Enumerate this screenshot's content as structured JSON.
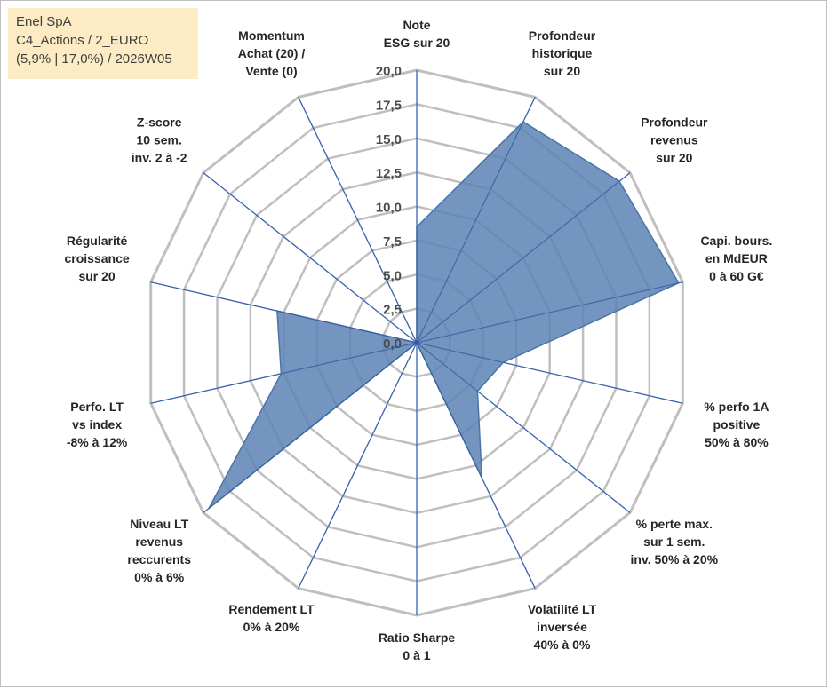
{
  "info": {
    "company": "Enel SpA",
    "portfolio": "C4_Actions / 2_EURO",
    "stats": "(5,9% | 17,0%) / 2026W05"
  },
  "colors": {
    "grid": "#bfbfbf",
    "spoke": "#4472c4",
    "fill": "#5b83b5",
    "info_bg": "#fdebc4"
  },
  "chart_data": {
    "type": "radar",
    "title": "",
    "rmin": 0,
    "rmax": 20,
    "ticks": [
      "0,0",
      "2,5",
      "5,0",
      "7,5",
      "10,0",
      "12,5",
      "15,0",
      "17,5",
      "20,0"
    ],
    "tick_values": [
      0,
      2.5,
      5,
      7.5,
      10,
      12.5,
      15,
      17.5,
      20
    ],
    "axes": [
      {
        "label": [
          "Note",
          "ESG sur 20"
        ],
        "value": 8.5
      },
      {
        "label": [
          "Profondeur",
          "historique",
          "sur 20"
        ],
        "value": 18
      },
      {
        "label": [
          "Profondeur",
          "revenus",
          "sur 20"
        ],
        "value": 19
      },
      {
        "label": [
          "Capi. bours.",
          "en MdEUR",
          "0 à 60 G€"
        ],
        "value": 19.7
      },
      {
        "label": [
          "% perfo 1A",
          "positive",
          "50% à 80%"
        ],
        "value": 6.5
      },
      {
        "label": [
          "% perte max.",
          "sur 1 sem.",
          "inv. 50% à 20%"
        ],
        "value": 5.7
      },
      {
        "label": [
          "Volatilité LT",
          "inversée",
          "40% à 0%"
        ],
        "value": 11
      },
      {
        "label": [
          "Ratio Sharpe",
          "0 à 1"
        ],
        "value": 0
      },
      {
        "label": [
          "Rendement LT",
          "0% à 20%"
        ],
        "value": 0
      },
      {
        "label": [
          "Niveau LT",
          "revenus",
          "reccurents",
          "0% à 6%"
        ],
        "value": 19.5
      },
      {
        "label": [
          "Perfo. LT",
          "vs index",
          "-8% à 12%"
        ],
        "value": 10.2
      },
      {
        "label": [
          "Régularité",
          "croissance",
          "sur 20"
        ],
        "value": 10.5
      },
      {
        "label": [
          "Z-score",
          "10 sem.",
          "inv. 2 à -2"
        ],
        "value": 0
      },
      {
        "label": [
          "Momentum",
          "Achat (20) /",
          "Vente (0)"
        ],
        "value": 0
      }
    ]
  }
}
